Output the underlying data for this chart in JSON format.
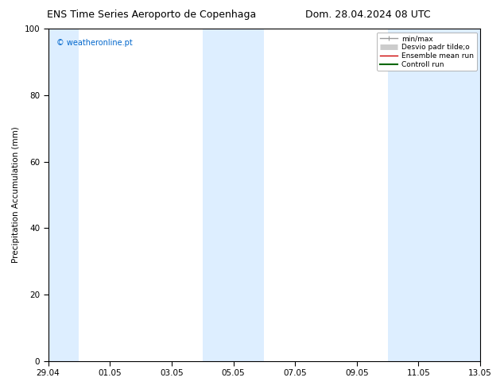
{
  "title_left": "ENS Time Series Aeroporto de Copenhaga",
  "title_right": "Dom. 28.04.2024 08 UTC",
  "ylabel": "Precipitation Accumulation (mm)",
  "ylim": [
    0,
    100
  ],
  "yticks": [
    0,
    20,
    40,
    60,
    80,
    100
  ],
  "xlim": [
    0,
    14
  ],
  "xtick_positions": [
    0,
    2,
    4,
    6,
    8,
    10,
    12,
    14
  ],
  "xtick_labels": [
    "29.04",
    "01.05",
    "03.05",
    "05.05",
    "07.05",
    "09.05",
    "11.05",
    "13.05"
  ],
  "watermark": "© weatheronline.pt",
  "watermark_color": "#0066cc",
  "shaded_bands": [
    {
      "xmin": 0.0,
      "xmax": 1.0
    },
    {
      "xmin": 5.0,
      "xmax": 7.0
    },
    {
      "xmin": 11.0,
      "xmax": 14.0
    }
  ],
  "band_color": "#ddeeff",
  "legend_items": [
    {
      "label": "min/max",
      "color": "#999999",
      "lw": 1.0
    },
    {
      "label": "Desvio padr tilde;o",
      "color": "#cccccc",
      "lw": 5
    },
    {
      "label": "Ensemble mean run",
      "color": "#cc0000",
      "lw": 1.0
    },
    {
      "label": "Controll run",
      "color": "#006600",
      "lw": 1.5
    }
  ],
  "background_color": "#ffffff",
  "title_fontsize": 9,
  "ylabel_fontsize": 7.5,
  "tick_fontsize": 7.5,
  "watermark_fontsize": 7,
  "legend_fontsize": 6.5
}
